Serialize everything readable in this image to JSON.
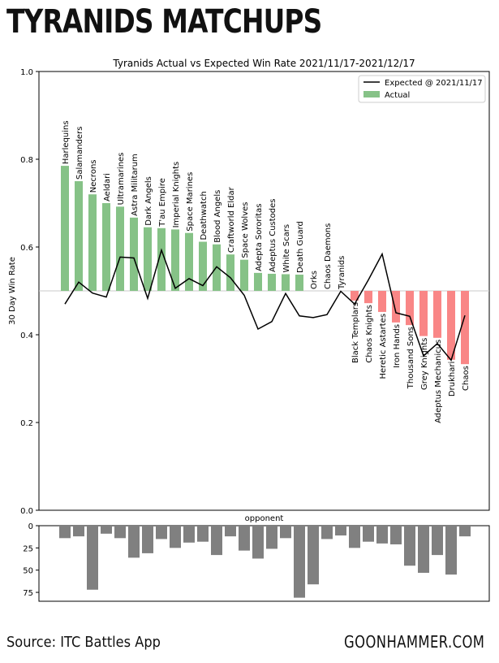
{
  "page": {
    "title": "TYRANIDS MATCHUPS",
    "source": "Source: ITC Battles App",
    "brand": "GOONHAMMER.COM"
  },
  "chart_data": [
    {
      "type": "bar",
      "title": "Tyranids Actual vs Expected Win Rate 2021/11/17-2021/12/17",
      "xlabel": "opponent",
      "ylabel": "30 Day Win Rate",
      "ylim": [
        0,
        1
      ],
      "yticks": [
        "0.0",
        "0.2",
        "0.4",
        "0.6",
        "0.8",
        "1.0"
      ],
      "baseline": 0.5,
      "legend": {
        "position": "top-right",
        "line_label": "Expected @ 2021/11/17",
        "bar_label": "Actual"
      },
      "colors": {
        "positive": "#86c287",
        "negative": "#f98686",
        "line": "#000000",
        "baseline": "#c8c8c8"
      },
      "categories": [
        "Harlequins",
        "Salamanders",
        "Necrons",
        "Aeldari",
        "Ultramarines",
        "Astra Militarum",
        "Dark Angels",
        "T'au Empire",
        "Imperial Knights",
        "Space Marines",
        "Deathwatch",
        "Blood Angels",
        "Craftworld Eldar",
        "Space Wolves",
        "Adepta Sororitas",
        "Adeptus Custodes",
        "White Scars",
        "Death Guard",
        "Orks",
        "Chaos Daemons",
        "Tyranids",
        "Black Templars",
        "Chaos Knights",
        "Heretic Astartes",
        "Iron Hands",
        "Thousand Sons",
        "Grey Knights",
        "Adeptus Mechanicus",
        "Drukhari",
        "Chaos"
      ],
      "actual": [
        0.785,
        0.75,
        0.72,
        0.7,
        0.692,
        0.667,
        0.645,
        0.643,
        0.64,
        0.632,
        0.612,
        0.606,
        0.583,
        0.571,
        0.541,
        0.539,
        0.538,
        0.537,
        0.5,
        0.5,
        0.5,
        0.478,
        0.472,
        0.452,
        0.428,
        0.422,
        0.397,
        0.393,
        0.343,
        0.333
      ],
      "expected": [
        0.47,
        0.52,
        0.495,
        0.486,
        0.577,
        0.575,
        0.483,
        0.593,
        0.506,
        0.528,
        0.512,
        0.555,
        0.53,
        0.49,
        0.413,
        0.43,
        0.494,
        0.443,
        0.439,
        0.446,
        0.499,
        0.47,
        0.525,
        0.584,
        0.45,
        0.442,
        0.352,
        0.38,
        0.342,
        0.444
      ]
    },
    {
      "type": "bar",
      "title": "",
      "xlabel": "",
      "ylabel": "",
      "ylim": [
        0,
        85
      ],
      "y_inverted": true,
      "yticks": [
        "0",
        "25",
        "50",
        "75"
      ],
      "color": "#808080",
      "categories": [
        "Harlequins",
        "Salamanders",
        "Necrons",
        "Aeldari",
        "Ultramarines",
        "Astra Militarum",
        "Dark Angels",
        "T'au Empire",
        "Imperial Knights",
        "Space Marines",
        "Deathwatch",
        "Blood Angels",
        "Craftworld Eldar",
        "Space Wolves",
        "Adepta Sororitas",
        "Adeptus Custodes",
        "White Scars",
        "Death Guard",
        "Orks",
        "Chaos Daemons",
        "Tyranids",
        "Black Templars",
        "Chaos Knights",
        "Heretic Astartes",
        "Iron Hands",
        "Thousand Sons",
        "Grey Knights",
        "Adeptus Mechanicus",
        "Drukhari",
        "Chaos"
      ],
      "values": [
        14,
        12,
        72,
        9,
        14,
        36,
        31,
        15,
        25,
        19,
        18,
        33,
        12,
        28,
        37,
        26,
        14,
        81,
        66,
        15,
        11,
        25,
        18,
        20,
        21,
        45,
        53,
        33,
        55,
        12
      ]
    }
  ]
}
